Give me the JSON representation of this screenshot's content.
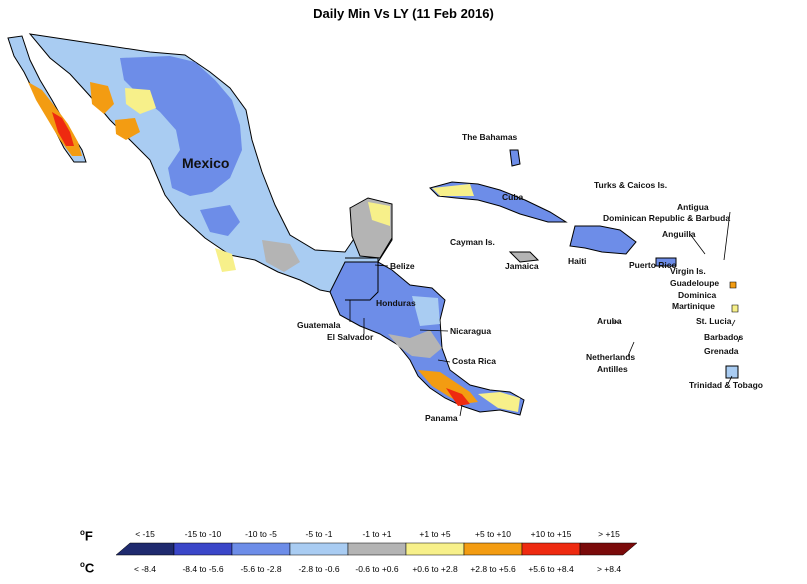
{
  "title": "Daily Min Vs LY (11 Feb 2016)",
  "colors": {
    "c1": "#1f2a6e",
    "c2": "#3a46c8",
    "c3": "#6d8de8",
    "c4": "#a9ccf2",
    "c5": "#b4b4b4",
    "c6": "#f7f08a",
    "c7": "#f39c12",
    "c8": "#ee2a10",
    "c9": "#7a0a0a"
  },
  "labels": {
    "mexico": "Mexico",
    "bahamas": "The Bahamas",
    "turks": "Turks & Caicos Is.",
    "cuba": "Cuba",
    "antigua": "Antigua",
    "dominican": "Dominican Republic & Barbuda",
    "anguilla": "Anguilla",
    "cayman": "Cayman Is.",
    "jamaica": "Jamaica",
    "haiti": "Haiti",
    "puerto_rico": "Puerto Rico",
    "virgin": "Virgin Is.",
    "guadeloupe": "Guadeloupe",
    "dominica": "Dominica",
    "martinique": "Martinique",
    "belize": "Belize",
    "honduras": "Honduras",
    "guatemala": "Guatemala",
    "el_salvador": "El Salvador",
    "nicaragua": "Nicaragua",
    "aruba": "Aruba",
    "st_lucia": "St. Lucia",
    "barbados": "Barbados",
    "netherlands": "Netherlands",
    "antilles": "Antilles",
    "grenada": "Grenada",
    "costa_rica": "Costa Rica",
    "trinidad": "Trinidad & Tobago",
    "panama": "Panama"
  },
  "legend": {
    "unit_f": "F",
    "unit_c": "C",
    "degree": "o",
    "fahrenheit": [
      "< -15",
      "-15 to -10",
      "-10 to -5",
      "-5 to -1",
      "-1 to +1",
      "+1 to +5",
      "+5 to +10",
      "+10 to +15",
      "> +15"
    ],
    "celsius": [
      "< -8.4",
      "-8.4 to -5.6",
      "-5.6 to -2.8",
      "-2.8 to -0.6",
      "-0.6 to +0.6",
      "+0.6 to +2.8",
      "+2.8 to +5.6",
      "+5.6 to +8.4",
      "> +8.4"
    ]
  }
}
